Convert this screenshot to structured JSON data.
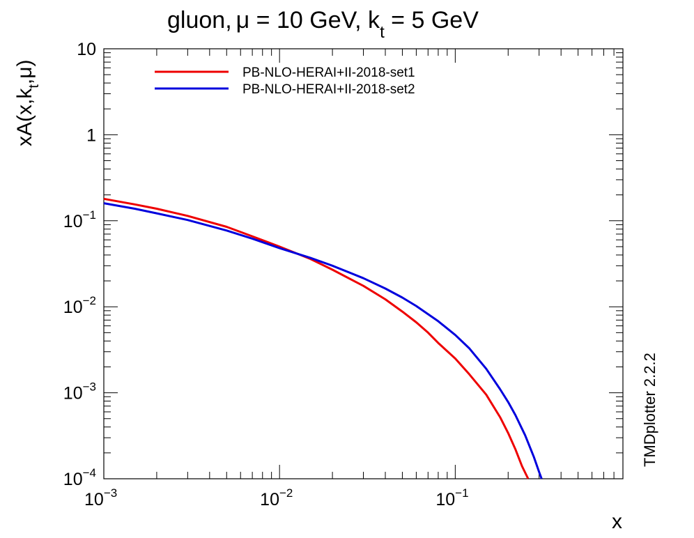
{
  "chart_data": {
    "type": "line",
    "title": {
      "base": "gluon,",
      "mu_symbol": "μ",
      "mu_text": " = 10 GeV, k",
      "sub": "t",
      "rest": " = 5 GeV"
    },
    "xlabel": "x",
    "ylabel": {
      "part1": "xA(x,k",
      "sub": "t",
      "part2": ",μ)"
    },
    "side_label": "TMDplotter 2.2.2",
    "x_scale": "log",
    "y_scale": "log",
    "xlim": [
      0.001,
      0.9
    ],
    "ylim": [
      0.0001,
      10
    ],
    "x_ticks": [
      {
        "value": 0.001,
        "base": "10",
        "exp": "−3"
      },
      {
        "value": 0.01,
        "base": "10",
        "exp": "−2"
      },
      {
        "value": 0.1,
        "base": "10",
        "exp": "−1"
      }
    ],
    "y_ticks": [
      {
        "value": 0.0001,
        "base": "10",
        "exp": "−4"
      },
      {
        "value": 0.001,
        "base": "10",
        "exp": "−3"
      },
      {
        "value": 0.01,
        "base": "10",
        "exp": "−2"
      },
      {
        "value": 0.1,
        "base": "10",
        "exp": "−1"
      },
      {
        "value": 1,
        "base": "1",
        "exp": ""
      },
      {
        "value": 10,
        "base": "10",
        "exp": ""
      }
    ],
    "legend_position": "top-left",
    "series": [
      {
        "name": "PB-NLO-HERAI+II-2018-set1",
        "color": "#ee0000",
        "x": [
          0.001,
          0.0015,
          0.002,
          0.003,
          0.005,
          0.007,
          0.01,
          0.015,
          0.02,
          0.03,
          0.04,
          0.05,
          0.06,
          0.07,
          0.08,
          0.1,
          0.12,
          0.15,
          0.18,
          0.2,
          0.22,
          0.24,
          0.26
        ],
        "y": [
          0.18,
          0.155,
          0.138,
          0.114,
          0.085,
          0.066,
          0.05,
          0.036,
          0.027,
          0.0175,
          0.0122,
          0.0088,
          0.0066,
          0.005,
          0.0038,
          0.0025,
          0.00165,
          0.00095,
          0.00052,
          0.00034,
          0.00022,
          0.00014,
          0.0001
        ]
      },
      {
        "name": "PB-NLO-HERAI+II-2018-set2",
        "color": "#0000dd",
        "x": [
          0.001,
          0.0015,
          0.002,
          0.003,
          0.005,
          0.007,
          0.01,
          0.015,
          0.02,
          0.03,
          0.04,
          0.05,
          0.06,
          0.08,
          0.1,
          0.12,
          0.15,
          0.18,
          0.2,
          0.22,
          0.25,
          0.28,
          0.3,
          0.31
        ],
        "y": [
          0.16,
          0.138,
          0.122,
          0.102,
          0.077,
          0.062,
          0.048,
          0.037,
          0.03,
          0.0215,
          0.0163,
          0.0128,
          0.0102,
          0.0068,
          0.0047,
          0.0033,
          0.0019,
          0.0011,
          0.00078,
          0.00055,
          0.00032,
          0.00018,
          0.00012,
          0.0001
        ]
      }
    ]
  }
}
